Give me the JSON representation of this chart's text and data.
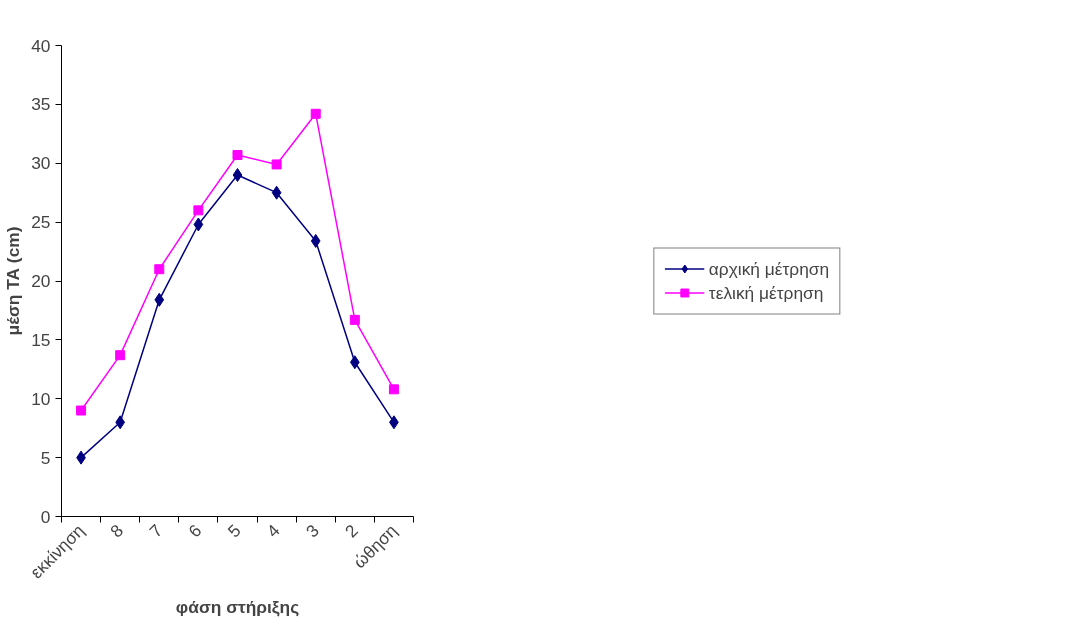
{
  "chart_data": {
    "type": "line",
    "xlabel": "φάση στήριξης",
    "ylabel": "μέση ΤΑ (cm)",
    "categories": [
      "εκκίνηση",
      "8",
      "7",
      "6",
      "5",
      "4",
      "3",
      "2",
      "ώθηση"
    ],
    "series": [
      {
        "name": "αρχική μέτρηση",
        "color": "#000080",
        "marker": "diamond",
        "values": [
          5.0,
          8.0,
          18.4,
          24.8,
          29.0,
          27.5,
          23.4,
          13.1,
          8.0
        ]
      },
      {
        "name": "τελική μέτρηση",
        "color": "#ff00ff",
        "marker": "square",
        "values": [
          9.0,
          13.7,
          21.0,
          26.0,
          30.7,
          29.9,
          34.2,
          16.7,
          10.8
        ]
      }
    ],
    "ylim": [
      0,
      40
    ],
    "yticks": [
      0,
      5,
      10,
      15,
      20,
      25,
      30,
      35,
      40
    ],
    "grid": false,
    "legend": "right",
    "line_style": "solid"
  }
}
